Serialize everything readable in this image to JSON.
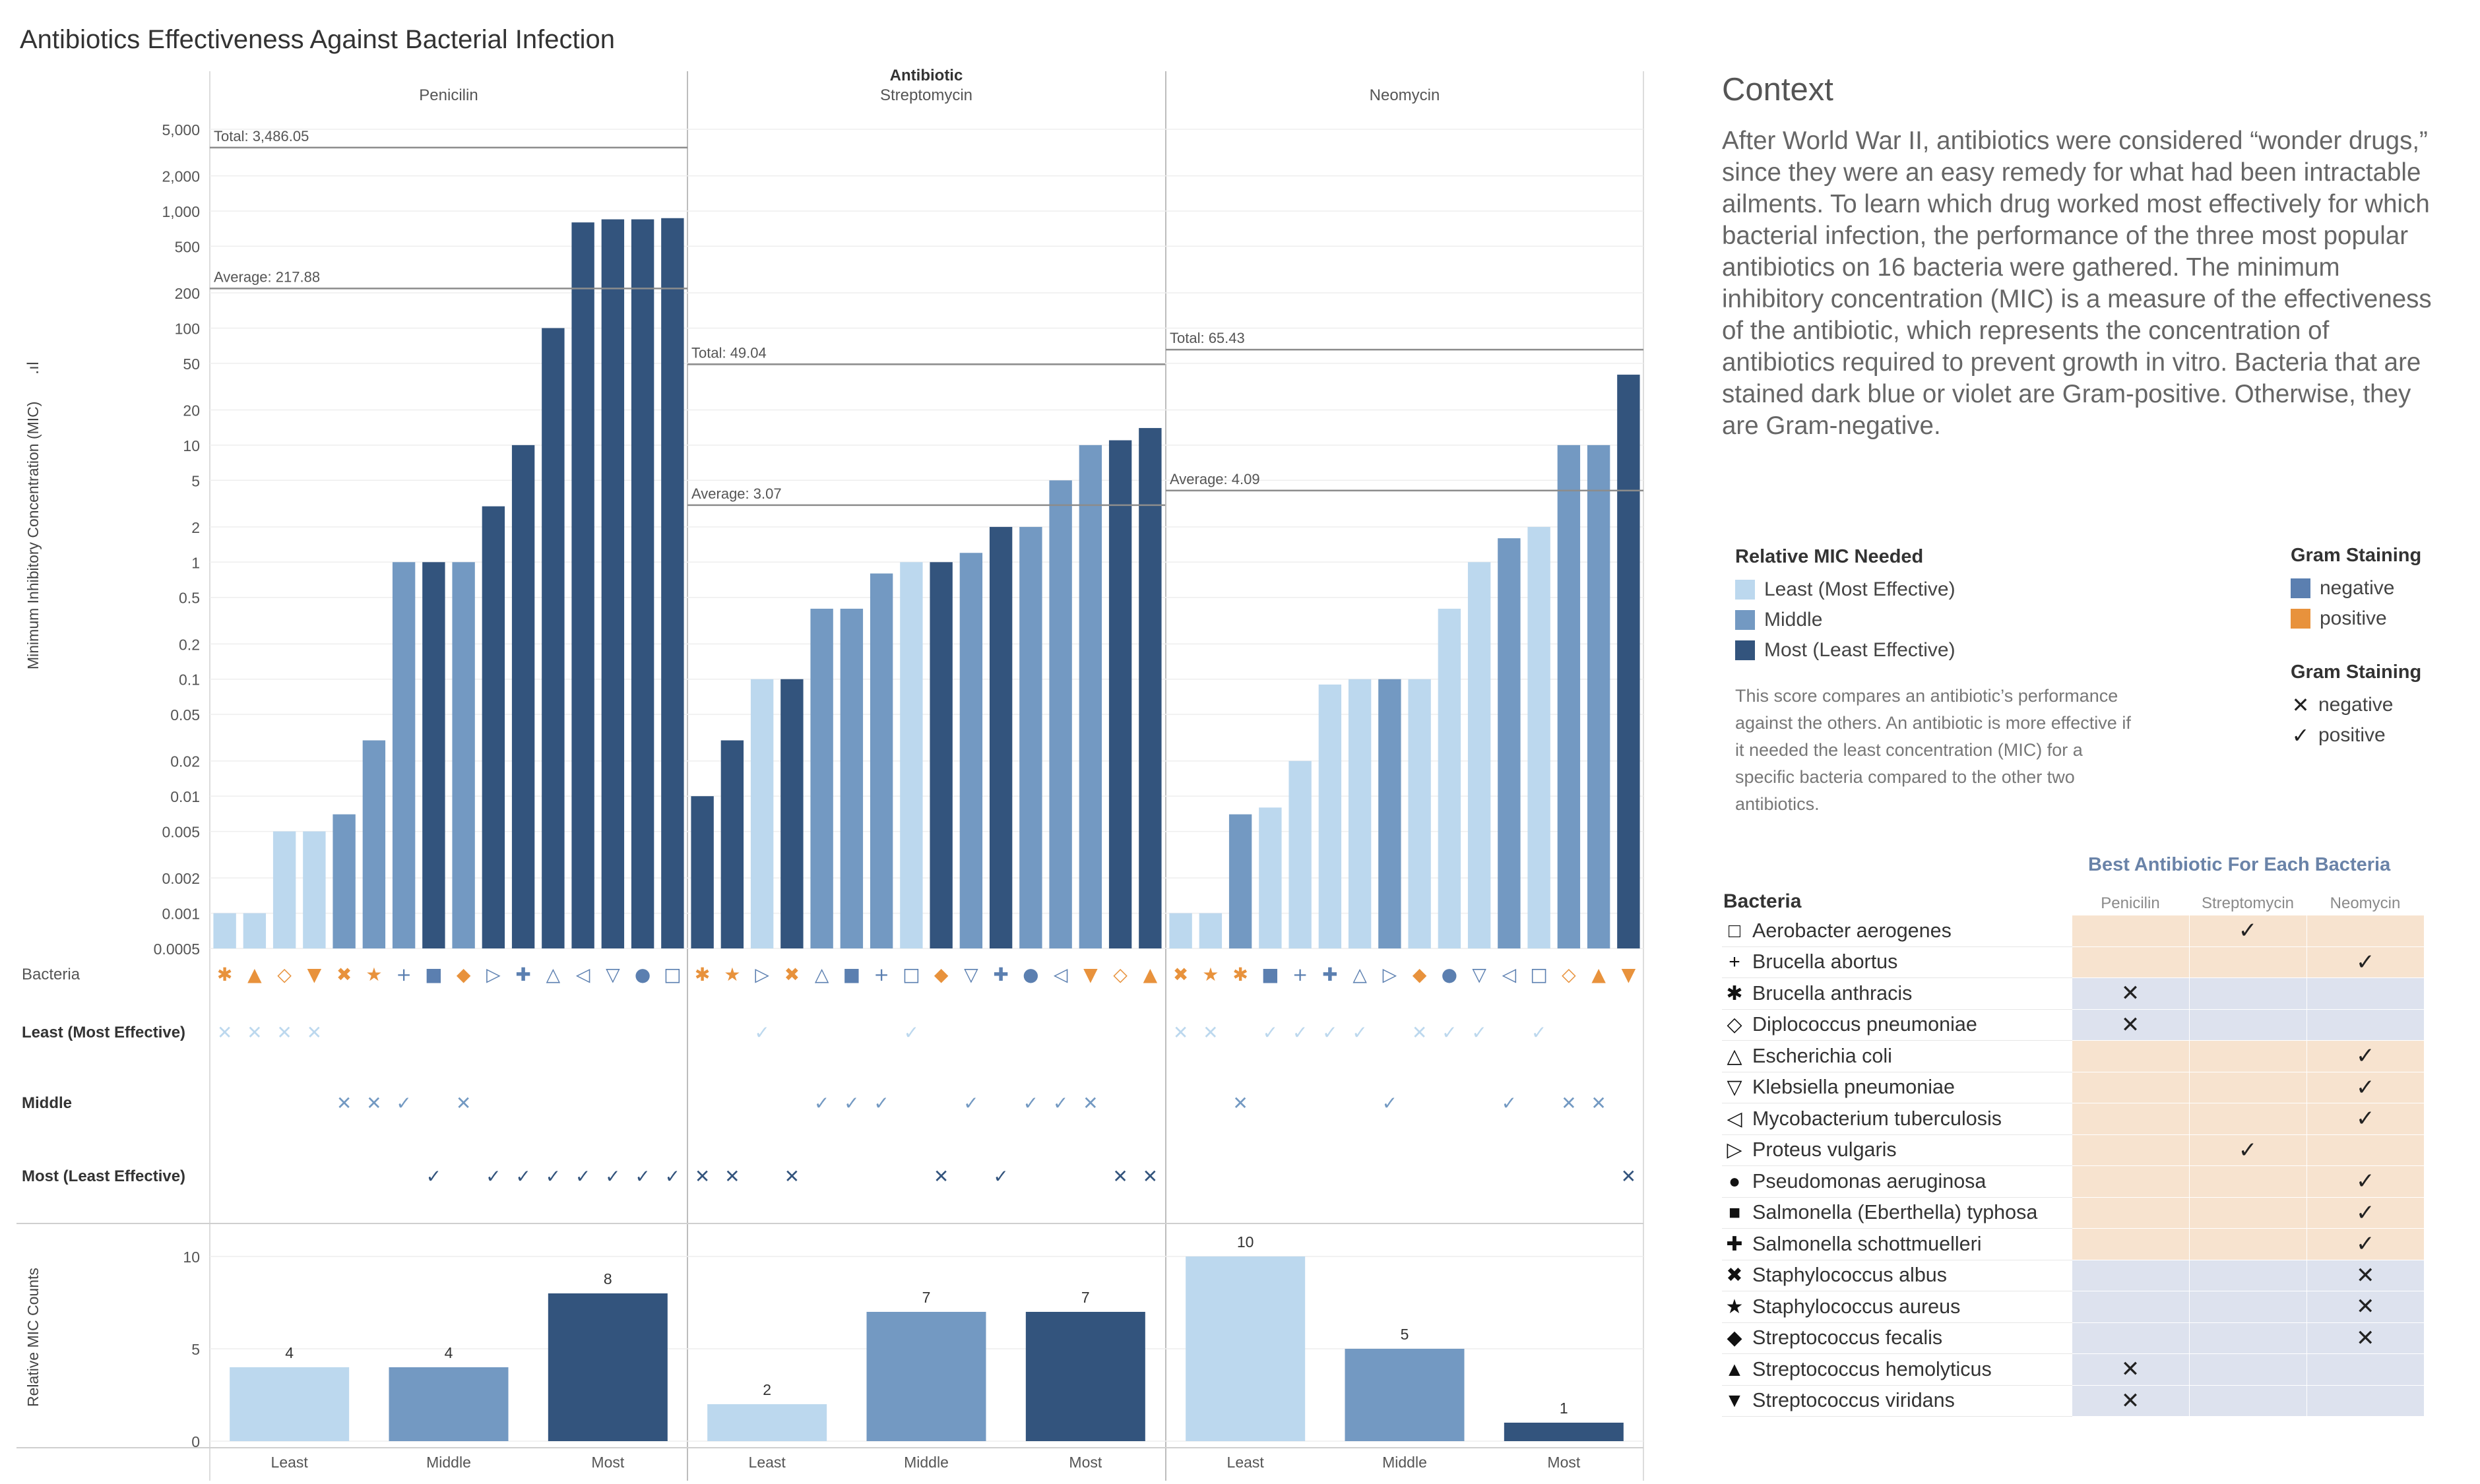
{
  "title": "Antibiotics Effectiveness Against Bacterial Infection",
  "context": {
    "heading": "Context",
    "body": "After World War II, antibiotics were considered “wonder drugs,” since they were an easy remedy for what had been intractable ailments. To learn which drug worked most effectively for which bacterial infection, the performance of the three most popular antibiotics on 16 bacteria were gathered. The minimum inhibitory concentration (MIC) is a measure of the effectiveness of the antibiotic, which represents the concentration of antibiotics required to prevent growth in vitro. Bacteria that are stained dark blue or violet are Gram-positive. Otherwise, they are Gram-negative."
  },
  "legend_mic": {
    "title": "Relative MIC Needed",
    "items": [
      {
        "label": "Least (Most Effective)",
        "color": "#bcd8ee"
      },
      {
        "label": "Middle",
        "color": "#7399c2"
      },
      {
        "label": "Most (Least Effective)",
        "color": "#33547d"
      }
    ],
    "note": "This score compares an antibiotic’s performance against the others. An antibiotic is more effective if it needed the least concentration (MIC) for a specific bacteria compared to the other two antibiotics."
  },
  "legend_gram_color": {
    "title": "Gram Staining",
    "items": [
      {
        "label": "negative",
        "color": "#5b7fb0"
      },
      {
        "label": "positive",
        "color": "#e8923c"
      }
    ]
  },
  "legend_gram_mark": {
    "title": "Gram Staining",
    "items": [
      {
        "label": "negative",
        "icon": "x-mark-icon",
        "glyph": "✕"
      },
      {
        "label": "positive",
        "icon": "check-mark-icon",
        "glyph": "✓"
      }
    ]
  },
  "best_table": {
    "title": "Best Antibiotic For Each Bacteria",
    "row_header": "Bacteria",
    "columns": [
      "Penicilin",
      "Streptomycin",
      "Neomycin"
    ],
    "rows": [
      {
        "name": "Aerobacter aerogenes",
        "sym": "□",
        "gram": "negative",
        "best": 1,
        "mark": "✓"
      },
      {
        "name": "Brucella abortus",
        "sym": "+",
        "gram": "negative",
        "best": 2,
        "mark": "✓"
      },
      {
        "name": "Brucella anthracis",
        "sym": "✱",
        "gram": "positive",
        "best": 0,
        "mark": "✕"
      },
      {
        "name": "Diplococcus pneumoniae",
        "sym": "◇",
        "gram": "positive",
        "best": 0,
        "mark": "✕"
      },
      {
        "name": "Escherichia coli",
        "sym": "△",
        "gram": "negative",
        "best": 2,
        "mark": "✓"
      },
      {
        "name": "Klebsiella pneumoniae",
        "sym": "▽",
        "gram": "negative",
        "best": 2,
        "mark": "✓"
      },
      {
        "name": "Mycobacterium tuberculosis",
        "sym": "◁",
        "gram": "negative",
        "best": 2,
        "mark": "✓"
      },
      {
        "name": "Proteus vulgaris",
        "sym": "▷",
        "gram": "negative",
        "best": 1,
        "mark": "✓"
      },
      {
        "name": "Pseudomonas aeruginosa",
        "sym": "●",
        "gram": "negative",
        "best": 2,
        "mark": "✓"
      },
      {
        "name": "Salmonella (Eberthella) typhosa",
        "sym": "■",
        "gram": "negative",
        "best": 2,
        "mark": "✓"
      },
      {
        "name": "Salmonella schottmuelleri",
        "sym": "✚",
        "gram": "negative",
        "best": 2,
        "mark": "✓"
      },
      {
        "name": "Staphylococcus albus",
        "sym": "✖",
        "gram": "positive",
        "best": 2,
        "mark": "✕"
      },
      {
        "name": "Staphylococcus aureus",
        "sym": "★",
        "gram": "positive",
        "best": 2,
        "mark": "✕"
      },
      {
        "name": "Streptococcus fecalis",
        "sym": "◆",
        "gram": "positive",
        "best": 2,
        "mark": "✕"
      },
      {
        "name": "Streptococcus hemolyticus",
        "sym": "▲",
        "gram": "positive",
        "best": 0,
        "mark": "✕"
      },
      {
        "name": "Streptococcus viridans",
        "sym": "▼",
        "gram": "positive",
        "best": 0,
        "mark": "✕"
      }
    ]
  },
  "colors": {
    "least": "#bcd8ee",
    "middle": "#7399c2",
    "most": "#33547d",
    "negative": "#5b7fb0",
    "positive": "#e8923c",
    "pos_bg": "#f7e3cf",
    "neg_bg": "#dde2ee"
  },
  "chart_data": [
    {
      "type": "bar",
      "title": "Antibiotic",
      "ylabel": "Minimum Inhibitory Concentration (MIC)",
      "yscale": "log",
      "ylim": [
        0.0005,
        5000
      ],
      "yticks": [
        "5,000",
        "2,000",
        "1,000",
        "500",
        "200",
        "100",
        "50",
        "20",
        "10",
        "5",
        "2",
        "1",
        "0.5",
        "0.2",
        "0.1",
        "0.05",
        "0.02",
        "0.01",
        "0.005",
        "0.002",
        "0.001",
        "0.0005"
      ],
      "row_labels": [
        "Bacteria",
        "Least (Most Effective)",
        "Middle",
        "Most (Least Effective)"
      ],
      "panels": [
        {
          "name": "Penicilin",
          "total": "Total: 3,486.05",
          "total_value": 3486.05,
          "average": "Average: 217.88",
          "average_value": 217.88,
          "bars": [
            {
              "bacteria": "Brucella anthracis",
              "sym": "✱",
              "gram": "positive",
              "mic": 0.001,
              "level": "least"
            },
            {
              "bacteria": "Streptococcus hemolyticus",
              "sym": "▲",
              "gram": "positive",
              "mic": 0.001,
              "level": "least"
            },
            {
              "bacteria": "Diplococcus pneumoniae",
              "sym": "◇",
              "gram": "positive",
              "mic": 0.005,
              "level": "least"
            },
            {
              "bacteria": "Streptococcus viridans",
              "sym": "▼",
              "gram": "positive",
              "mic": 0.005,
              "level": "least"
            },
            {
              "bacteria": "Staphylococcus albus",
              "sym": "✖",
              "gram": "positive",
              "mic": 0.007,
              "level": "middle"
            },
            {
              "bacteria": "Staphylococcus aureus",
              "sym": "★",
              "gram": "positive",
              "mic": 0.03,
              "level": "middle"
            },
            {
              "bacteria": "Brucella abortus",
              "sym": "+",
              "gram": "negative",
              "mic": 1,
              "level": "middle"
            },
            {
              "bacteria": "Salmonella (Eberthella) typhosa",
              "sym": "■",
              "gram": "negative",
              "mic": 1,
              "level": "most"
            },
            {
              "bacteria": "Streptococcus fecalis",
              "sym": "◆",
              "gram": "positive",
              "mic": 1,
              "level": "middle"
            },
            {
              "bacteria": "Proteus vulgaris",
              "sym": "▷",
              "gram": "negative",
              "mic": 3,
              "level": "most"
            },
            {
              "bacteria": "Salmonella schottmuelleri",
              "sym": "✚",
              "gram": "negative",
              "mic": 10,
              "level": "most"
            },
            {
              "bacteria": "Escherichia coli",
              "sym": "△",
              "gram": "negative",
              "mic": 100,
              "level": "most"
            },
            {
              "bacteria": "Mycobacterium tuberculosis",
              "sym": "◁",
              "gram": "negative",
              "mic": 800,
              "level": "most"
            },
            {
              "bacteria": "Klebsiella pneumoniae",
              "sym": "▽",
              "gram": "negative",
              "mic": 850,
              "level": "most"
            },
            {
              "bacteria": "Pseudomonas aeruginosa",
              "sym": "●",
              "gram": "negative",
              "mic": 850,
              "level": "most"
            },
            {
              "bacteria": "Aerobacter aerogenes",
              "sym": "□",
              "gram": "negative",
              "mic": 870,
              "level": "most"
            }
          ]
        },
        {
          "name": "Streptomycin",
          "total": "Total: 49.04",
          "total_value": 49.04,
          "average": "Average: 3.07",
          "average_value": 3.07,
          "bars": [
            {
              "bacteria": "Brucella anthracis",
              "sym": "✱",
              "gram": "positive",
              "mic": 0.01,
              "level": "most"
            },
            {
              "bacteria": "Staphylococcus aureus",
              "sym": "★",
              "gram": "positive",
              "mic": 0.03,
              "level": "most"
            },
            {
              "bacteria": "Proteus vulgaris",
              "sym": "▷",
              "gram": "negative",
              "mic": 0.1,
              "level": "least"
            },
            {
              "bacteria": "Staphylococcus albus",
              "sym": "✖",
              "gram": "positive",
              "mic": 0.1,
              "level": "most"
            },
            {
              "bacteria": "Escherichia coli",
              "sym": "△",
              "gram": "negative",
              "mic": 0.4,
              "level": "middle"
            },
            {
              "bacteria": "Salmonella (Eberthella) typhosa",
              "sym": "■",
              "gram": "negative",
              "mic": 0.4,
              "level": "middle"
            },
            {
              "bacteria": "Brucella abortus",
              "sym": "+",
              "gram": "negative",
              "mic": 0.8,
              "level": "middle"
            },
            {
              "bacteria": "Aerobacter aerogenes",
              "sym": "□",
              "gram": "negative",
              "mic": 1,
              "level": "least"
            },
            {
              "bacteria": "Streptococcus fecalis",
              "sym": "◆",
              "gram": "positive",
              "mic": 1,
              "level": "most"
            },
            {
              "bacteria": "Klebsiella pneumoniae",
              "sym": "▽",
              "gram": "negative",
              "mic": 1.2,
              "level": "middle"
            },
            {
              "bacteria": "Salmonella schottmuelleri",
              "sym": "✚",
              "gram": "negative",
              "mic": 2,
              "level": "most"
            },
            {
              "bacteria": "Pseudomonas aeruginosa",
              "sym": "●",
              "gram": "negative",
              "mic": 2,
              "level": "middle"
            },
            {
              "bacteria": "Mycobacterium tuberculosis",
              "sym": "◁",
              "gram": "negative",
              "mic": 5,
              "level": "middle"
            },
            {
              "bacteria": "Streptococcus viridans",
              "sym": "▼",
              "gram": "positive",
              "mic": 10,
              "level": "middle"
            },
            {
              "bacteria": "Diplococcus pneumoniae",
              "sym": "◇",
              "gram": "positive",
              "mic": 11,
              "level": "most"
            },
            {
              "bacteria": "Streptococcus hemolyticus",
              "sym": "▲",
              "gram": "positive",
              "mic": 14,
              "level": "most"
            }
          ]
        },
        {
          "name": "Neomycin",
          "total": "Total: 65.43",
          "total_value": 65.43,
          "average": "Average: 4.09",
          "average_value": 4.09,
          "bars": [
            {
              "bacteria": "Staphylococcus albus",
              "sym": "✖",
              "gram": "positive",
              "mic": 0.001,
              "level": "least"
            },
            {
              "bacteria": "Staphylococcus aureus",
              "sym": "★",
              "gram": "positive",
              "mic": 0.001,
              "level": "least"
            },
            {
              "bacteria": "Brucella anthracis",
              "sym": "✱",
              "gram": "positive",
              "mic": 0.007,
              "level": "middle"
            },
            {
              "bacteria": "Salmonella (Eberthella) typhosa",
              "sym": "■",
              "gram": "negative",
              "mic": 0.008,
              "level": "least"
            },
            {
              "bacteria": "Brucella abortus",
              "sym": "+",
              "gram": "negative",
              "mic": 0.02,
              "level": "least"
            },
            {
              "bacteria": "Salmonella schottmuelleri",
              "sym": "✚",
              "gram": "negative",
              "mic": 0.09,
              "level": "least"
            },
            {
              "bacteria": "Escherichia coli",
              "sym": "△",
              "gram": "negative",
              "mic": 0.1,
              "level": "least"
            },
            {
              "bacteria": "Proteus vulgaris",
              "sym": "▷",
              "gram": "negative",
              "mic": 0.1,
              "level": "middle"
            },
            {
              "bacteria": "Streptococcus fecalis",
              "sym": "◆",
              "gram": "positive",
              "mic": 0.1,
              "level": "least"
            },
            {
              "bacteria": "Pseudomonas aeruginosa",
              "sym": "●",
              "gram": "negative",
              "mic": 0.4,
              "level": "least"
            },
            {
              "bacteria": "Klebsiella pneumoniae",
              "sym": "▽",
              "gram": "negative",
              "mic": 1,
              "level": "least"
            },
            {
              "bacteria": "Mycobacterium tuberculosis",
              "sym": "◁",
              "gram": "negative",
              "mic": 1.6,
              "level": "middle"
            },
            {
              "bacteria": "Aerobacter aerogenes",
              "sym": "□",
              "gram": "negative",
              "mic": 2,
              "level": "least"
            },
            {
              "bacteria": "Diplococcus pneumoniae",
              "sym": "◇",
              "gram": "positive",
              "mic": 10,
              "level": "middle"
            },
            {
              "bacteria": "Streptococcus hemolyticus",
              "sym": "▲",
              "gram": "positive",
              "mic": 10,
              "level": "middle"
            },
            {
              "bacteria": "Streptococcus viridans",
              "sym": "▼",
              "gram": "positive",
              "mic": 40,
              "level": "most"
            }
          ]
        }
      ]
    },
    {
      "type": "bar",
      "ylabel": "Relative MIC Counts",
      "ylim": [
        0,
        10
      ],
      "yticks": [
        0,
        5,
        10
      ],
      "categories": [
        "Least",
        "Middle",
        "Most"
      ],
      "panels": [
        {
          "name": "Penicilin",
          "values": [
            4,
            4,
            8
          ]
        },
        {
          "name": "Streptomycin",
          "values": [
            2,
            7,
            7
          ]
        },
        {
          "name": "Neomycin",
          "values": [
            10,
            5,
            1
          ]
        }
      ]
    }
  ]
}
